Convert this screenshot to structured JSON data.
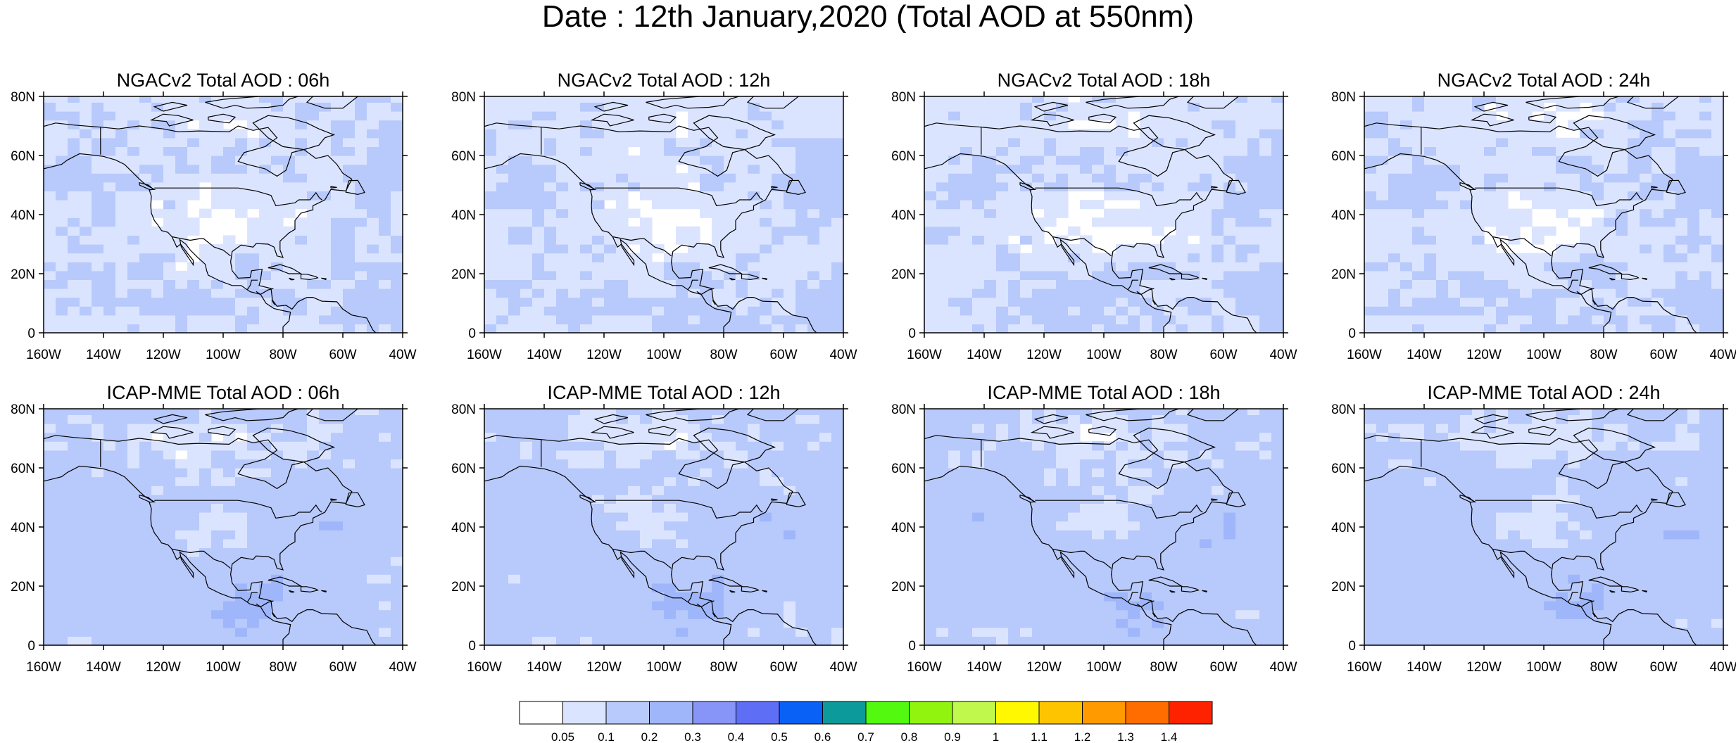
{
  "title": "Date : 12th January,2020 (Total AOD at 550nm)",
  "panels": [
    {
      "title": "NGACv2 Total AOD : 06h",
      "model": "NGACv2",
      "hour": "06h"
    },
    {
      "title": "NGACv2 Total AOD : 12h",
      "model": "NGACv2",
      "hour": "12h"
    },
    {
      "title": "NGACv2 Total AOD : 18h",
      "model": "NGACv2",
      "hour": "18h"
    },
    {
      "title": "NGACv2 Total AOD : 24h",
      "model": "NGACv2",
      "hour": "24h"
    },
    {
      "title": "ICAP-MME Total AOD : 06h",
      "model": "ICAP-MME",
      "hour": "06h"
    },
    {
      "title": "ICAP-MME Total AOD : 12h",
      "model": "ICAP-MME",
      "hour": "12h"
    },
    {
      "title": "ICAP-MME Total AOD : 18h",
      "model": "ICAP-MME",
      "hour": "18h"
    },
    {
      "title": "ICAP-MME Total AOD : 24h",
      "model": "ICAP-MME",
      "hour": "24h"
    }
  ],
  "map_extent": {
    "lon_min": -160,
    "lon_max": -40,
    "lat_min": 0,
    "lat_max": 80
  },
  "lat_ticks": [
    "80N",
    "60N",
    "40N",
    "20N",
    "0"
  ],
  "lon_ticks": [
    "160W",
    "140W",
    "120W",
    "100W",
    "80W",
    "60W",
    "40W"
  ],
  "colorbar": {
    "labels": [
      "0.05",
      "0.1",
      "0.2",
      "0.3",
      "0.4",
      "0.5",
      "0.6",
      "0.7",
      "0.8",
      "0.9",
      "1",
      "1.1",
      "1.2",
      "1.3",
      "1.4"
    ],
    "colors": [
      "#ffffff",
      "#dbe4ff",
      "#b8c9fb",
      "#9fb6fb",
      "#8795f8",
      "#5f6ff5",
      "#0a61f5",
      "#0d9a9a",
      "#53f90f",
      "#90f40e",
      "#c1f84c",
      "#fff800",
      "#ffc400",
      "#ff9a00",
      "#ff6d00",
      "#ff2200"
    ]
  }
}
